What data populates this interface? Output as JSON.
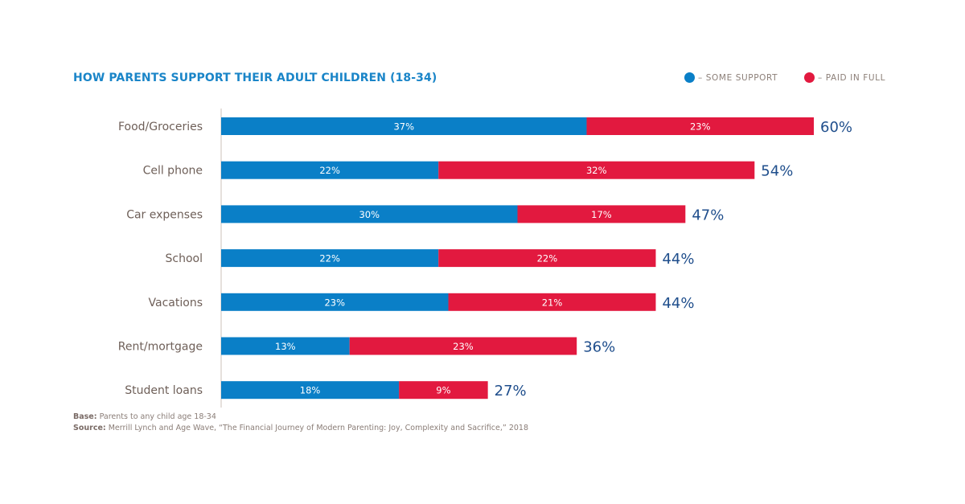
{
  "chart_data": {
    "type": "bar",
    "orientation": "horizontal",
    "stacked": true,
    "title": "HOW PARENTS SUPPORT THEIR ADULT CHILDREN (18-34)",
    "categories": [
      "Food/Groceries",
      "Cell phone",
      "Car expenses",
      "School",
      "Vacations",
      "Rent/mortgage",
      "Student loans"
    ],
    "series": [
      {
        "name": "SOME SUPPORT",
        "color": "#0a7fc7",
        "values": [
          37,
          22,
          30,
          22,
          23,
          13,
          18
        ],
        "labels": [
          "37%",
          "22%",
          "30%",
          "22%",
          "23%",
          "13%",
          "18%"
        ]
      },
      {
        "name": "PAID IN FULL",
        "color": "#e2193f",
        "values": [
          23,
          32,
          17,
          22,
          21,
          23,
          9
        ],
        "labels": [
          "23%",
          "32%",
          "17%",
          "22%",
          "21%",
          "23%",
          "9%"
        ]
      }
    ],
    "totals": [
      60,
      54,
      47,
      44,
      44,
      36,
      27
    ],
    "total_labels": [
      "60%",
      "54%",
      "47%",
      "44%",
      "44%",
      "36%",
      "27%"
    ],
    "xlim": [
      0,
      60
    ],
    "grid": false,
    "legend_placement": "top-right"
  },
  "legend": [
    {
      "label": "– SOME SUPPORT",
      "color": "#0a7fc7"
    },
    {
      "label": "– PAID IN FULL",
      "color": "#e2193f"
    }
  ],
  "footnotes": {
    "base_label": "Base:",
    "base_text": " Parents to any child age 18-34",
    "source_label": "Source:",
    "source_text": " Merrill Lynch and Age Wave, “The Financial Journey of Modern Parenting: Joy, Complexity and Sacrifice,” 2018"
  },
  "colors": {
    "title": "#1a85c8",
    "total": "#1f4e8c",
    "category": "#6e5f58"
  }
}
